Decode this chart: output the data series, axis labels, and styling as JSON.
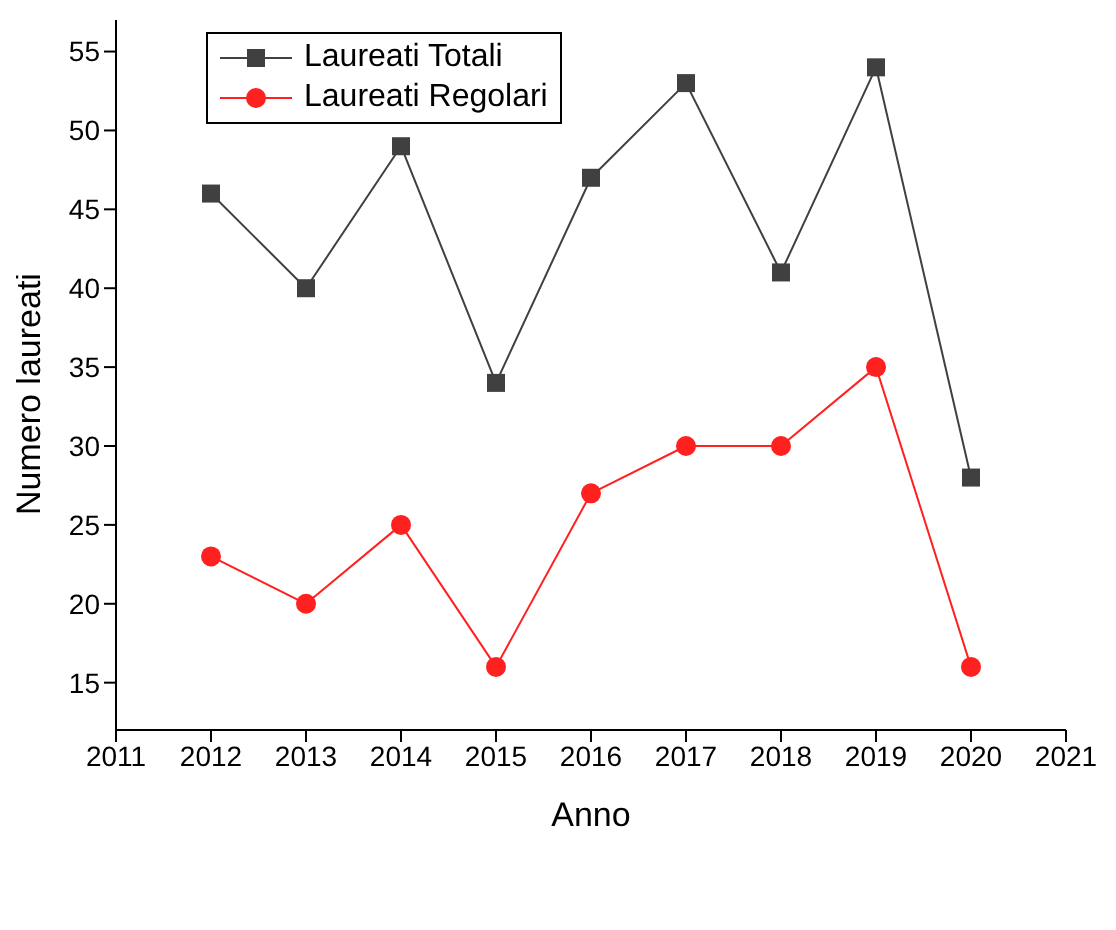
{
  "chart_data": {
    "type": "line",
    "xlabel": "Anno",
    "ylabel": "Numero laureati",
    "x": [
      2012,
      2013,
      2014,
      2015,
      2016,
      2017,
      2018,
      2019,
      2020
    ],
    "series": [
      {
        "name": "Laureati Totali",
        "color": "#404040",
        "marker": "square",
        "values": [
          46,
          40,
          49,
          34,
          47,
          53,
          41,
          54,
          28
        ]
      },
      {
        "name": "Laureati Regolari",
        "color": "#ff2020",
        "marker": "circle",
        "values": [
          23,
          20,
          25,
          16,
          27,
          30,
          30,
          35,
          16
        ]
      }
    ],
    "xlim": [
      2011,
      2021
    ],
    "xticks": [
      2011,
      2012,
      2013,
      2014,
      2015,
      2016,
      2017,
      2018,
      2019,
      2020,
      2021
    ],
    "ylim": [
      12,
      57
    ],
    "yticks": [
      15,
      20,
      25,
      30,
      35,
      40,
      45,
      50,
      55
    ],
    "grid": false,
    "legend": "top left"
  }
}
